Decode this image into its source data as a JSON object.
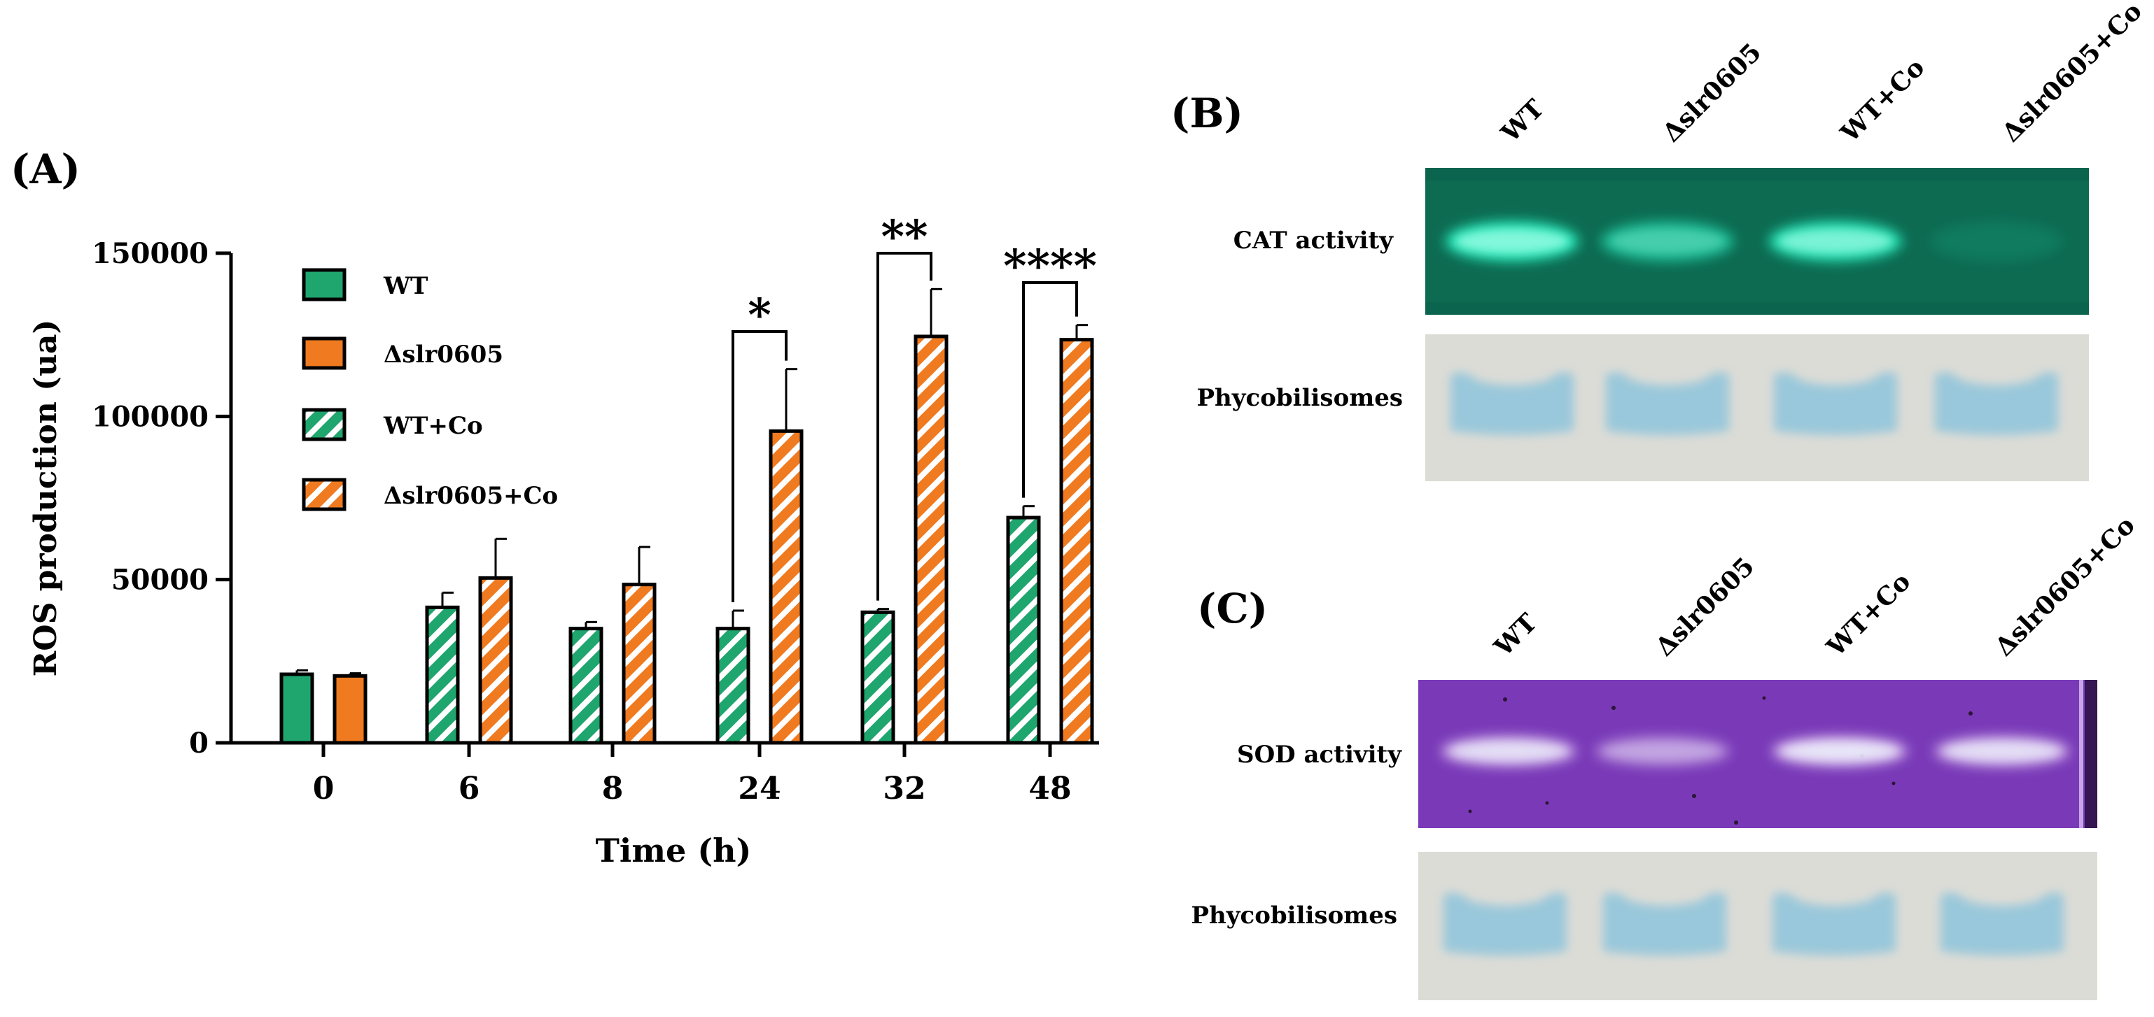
{
  "colors": {
    "wt": "#1fa56e",
    "mutant": "#f07a1f",
    "cat_gel_bg": "#0d6b52",
    "cat_band": "#27f0c0",
    "sod_gel_bg": "#7a3ab8",
    "sod_band": "#f4e6ff",
    "phyco_bg": "#dcdcd6",
    "phyco_band": "#8ec4dc"
  },
  "chart_data": {
    "type": "bar",
    "panel_label": "(A)",
    "xlabel": "Time (h)",
    "ylabel": "ROS production (ua)",
    "categories": [
      "0",
      "6",
      "8",
      "24",
      "32",
      "48"
    ],
    "ylim": [
      0,
      150000
    ],
    "yticks": [
      0,
      50000,
      100000,
      150000
    ],
    "ytick_labels": [
      "0",
      "50000",
      "100000",
      "150000"
    ],
    "legend": [
      "WT",
      "Δslr0605",
      "WT+Co",
      "Δslr0605+Co"
    ],
    "bars": [
      {
        "category": "0",
        "series": "WT",
        "value": 21000,
        "error": 1200
      },
      {
        "category": "0",
        "series": "Δslr0605",
        "value": 20500,
        "error": 800
      },
      {
        "category": "6",
        "series": "WT+Co",
        "value": 41500,
        "error": 4500
      },
      {
        "category": "6",
        "series": "Δslr0605+Co",
        "value": 50500,
        "error": 12000
      },
      {
        "category": "8",
        "series": "WT+Co",
        "value": 35000,
        "error": 2000
      },
      {
        "category": "8",
        "series": "Δslr0605+Co",
        "value": 48500,
        "error": 11500
      },
      {
        "category": "24",
        "series": "WT+Co",
        "value": 35000,
        "error": 5500
      },
      {
        "category": "24",
        "series": "Δslr0605+Co",
        "value": 95500,
        "error": 19000
      },
      {
        "category": "32",
        "series": "WT+Co",
        "value": 40000,
        "error": 1000
      },
      {
        "category": "32",
        "series": "Δslr0605+Co",
        "value": 124500,
        "error": 14500
      },
      {
        "category": "48",
        "series": "WT+Co",
        "value": 69000,
        "error": 3500
      },
      {
        "category": "48",
        "series": "Δslr0605+Co",
        "value": 123500,
        "error": 4500
      }
    ],
    "significance": [
      {
        "category": "24",
        "label": "*",
        "level": 126000
      },
      {
        "category": "32",
        "label": "**",
        "level": 150000
      },
      {
        "category": "48",
        "label": "****",
        "level": 141000
      }
    ]
  },
  "panel_b": {
    "label": "(B)",
    "lanes": [
      "WT",
      "Δslr0605",
      "WT+Co",
      "Δslr0605+Co"
    ],
    "cat_row_label": "CAT activity",
    "phyco_row_label": "Phycobilisomes",
    "cat_band_intensity": [
      1.0,
      0.65,
      0.95,
      0.12
    ]
  },
  "panel_c": {
    "label": "(C)",
    "lanes": [
      "WT",
      "Δslr0605",
      "WT+Co",
      "Δslr0605+Co"
    ],
    "sod_row_label": "SOD activity",
    "phyco_row_label": "Phycobilisomes",
    "sod_band_intensity": [
      0.85,
      0.55,
      0.9,
      0.85
    ]
  }
}
